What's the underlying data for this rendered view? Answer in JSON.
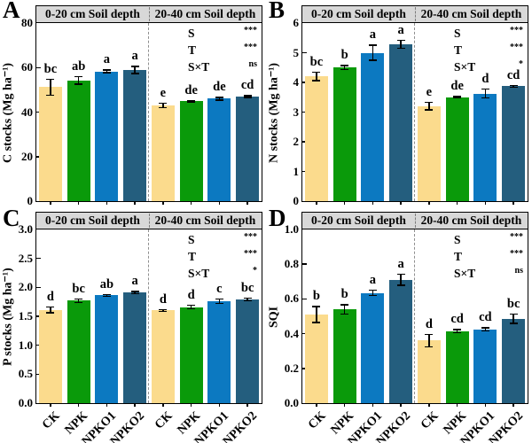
{
  "colors": {
    "bar_colors": [
      "#FBDB8D",
      "#0A9A0A",
      "#0C79C1",
      "#245E7E"
    ],
    "header_bg": "#D8D8D8",
    "divider": "#8F8F8F",
    "axis": "#000000"
  },
  "treatments": [
    "CK",
    "NPK",
    "NPKO1",
    "NPKO2"
  ],
  "chart_data": [
    {
      "type": "bar",
      "panel": "A",
      "title_bands": [
        "0-20 cm Soil depth",
        "20-40 cm Soil depth"
      ],
      "ylabel": "C stocks (Mg ha⁻¹)",
      "ylim": [
        0,
        80
      ],
      "ytick_step": 20,
      "ytick_decimals": 0,
      "grid": false,
      "categories": [
        "CK",
        "NPK",
        "NPKO1",
        "NPKO2",
        "CK",
        "NPK",
        "NPKO1",
        "NPKO2"
      ],
      "series": [
        {
          "name": "0-20 cm",
          "values": [
            51.2,
            54.3,
            58.3,
            58.9
          ],
          "errors": [
            3.8,
            2.0,
            0.9,
            1.9
          ],
          "letters": [
            "bc",
            "ab",
            "a",
            "a"
          ]
        },
        {
          "name": "20-40 cm",
          "values": [
            43.0,
            44.8,
            46.0,
            47.0
          ],
          "errors": [
            1.3,
            0.5,
            0.9,
            0.7
          ],
          "letters": [
            "e",
            "de",
            "de",
            "cd"
          ]
        }
      ],
      "anova": [
        {
          "factor": "S",
          "sig": "***"
        },
        {
          "factor": "T",
          "sig": "***"
        },
        {
          "factor": "S×T",
          "sig": "ns"
        }
      ],
      "show_x_tick_labels": false
    },
    {
      "type": "bar",
      "panel": "B",
      "title_bands": [
        "0-20 cm Soil depth",
        "20-40 cm Soil depth"
      ],
      "ylabel": "N stocks (Mg ha⁻¹)",
      "ylim": [
        0,
        6
      ],
      "ytick_step": 1,
      "ytick_decimals": 0,
      "grid": false,
      "categories": [
        "CK",
        "NPK",
        "NPKO1",
        "NPKO2",
        "CK",
        "NPK",
        "NPKO1",
        "NPKO2"
      ],
      "series": [
        {
          "name": "0-20 cm",
          "values": [
            4.2,
            4.5,
            5.0,
            5.28
          ],
          "errors": [
            0.16,
            0.09,
            0.27,
            0.15
          ],
          "letters": [
            "bc",
            "b",
            "a",
            "a"
          ]
        },
        {
          "name": "20-40 cm",
          "values": [
            3.2,
            3.5,
            3.62,
            3.87
          ],
          "errors": [
            0.15,
            0.04,
            0.17,
            0.05
          ],
          "letters": [
            "e",
            "de",
            "d",
            "cd"
          ]
        }
      ],
      "anova": [
        {
          "factor": "S",
          "sig": "***"
        },
        {
          "factor": "T",
          "sig": "***"
        },
        {
          "factor": "S×T",
          "sig": "*"
        }
      ],
      "show_x_tick_labels": false
    },
    {
      "type": "bar",
      "panel": "C",
      "title_bands": [
        "0-20 cm Soil depth",
        "20-40 cm Soil depth"
      ],
      "ylabel": "P stocks (Mg ha⁻¹)",
      "ylim": [
        0,
        3
      ],
      "ytick_step": 0.5,
      "ytick_decimals": 1,
      "grid": false,
      "categories": [
        "CK",
        "NPK",
        "NPKO1",
        "NPKO2",
        "CK",
        "NPK",
        "NPKO1",
        "NPKO2"
      ],
      "series": [
        {
          "name": "0-20 cm",
          "values": [
            1.61,
            1.77,
            1.86,
            1.91
          ],
          "errors": [
            0.06,
            0.04,
            0.03,
            0.03
          ],
          "letters": [
            "d",
            "bc",
            "ab",
            "a"
          ]
        },
        {
          "name": "20-40 cm",
          "values": [
            1.6,
            1.66,
            1.76,
            1.79
          ],
          "errors": [
            0.03,
            0.04,
            0.05,
            0.03
          ],
          "letters": [
            "d",
            "d",
            "c",
            "bc"
          ]
        }
      ],
      "anova": [
        {
          "factor": "S",
          "sig": "***"
        },
        {
          "factor": "T",
          "sig": "***"
        },
        {
          "factor": "S×T",
          "sig": "*"
        }
      ],
      "show_x_tick_labels": true
    },
    {
      "type": "bar",
      "panel": "D",
      "title_bands": [
        "0-20 cm Soil depth",
        "20-40 cm Soil depth"
      ],
      "ylabel": "SQI",
      "ylim": [
        0,
        1
      ],
      "ytick_step": 0.2,
      "ytick_decimals": 1,
      "grid": false,
      "categories": [
        "CK",
        "NPK",
        "NPKO1",
        "NPKO2",
        "CK",
        "NPK",
        "NPKO1",
        "NPKO2"
      ],
      "series": [
        {
          "name": "0-20 cm",
          "values": [
            0.51,
            0.54,
            0.635,
            0.71
          ],
          "errors": [
            0.05,
            0.03,
            0.02,
            0.035
          ],
          "letters": [
            "b",
            "b",
            "a",
            "a"
          ]
        },
        {
          "name": "20-40 cm",
          "values": [
            0.36,
            0.415,
            0.425,
            0.485
          ],
          "errors": [
            0.04,
            0.012,
            0.012,
            0.03
          ],
          "letters": [
            "d",
            "cd",
            "cd",
            "bc"
          ]
        }
      ],
      "anova": [
        {
          "factor": "S",
          "sig": "***"
        },
        {
          "factor": "T",
          "sig": "***"
        },
        {
          "factor": "S×T",
          "sig": "ns"
        }
      ],
      "show_x_tick_labels": true
    }
  ]
}
